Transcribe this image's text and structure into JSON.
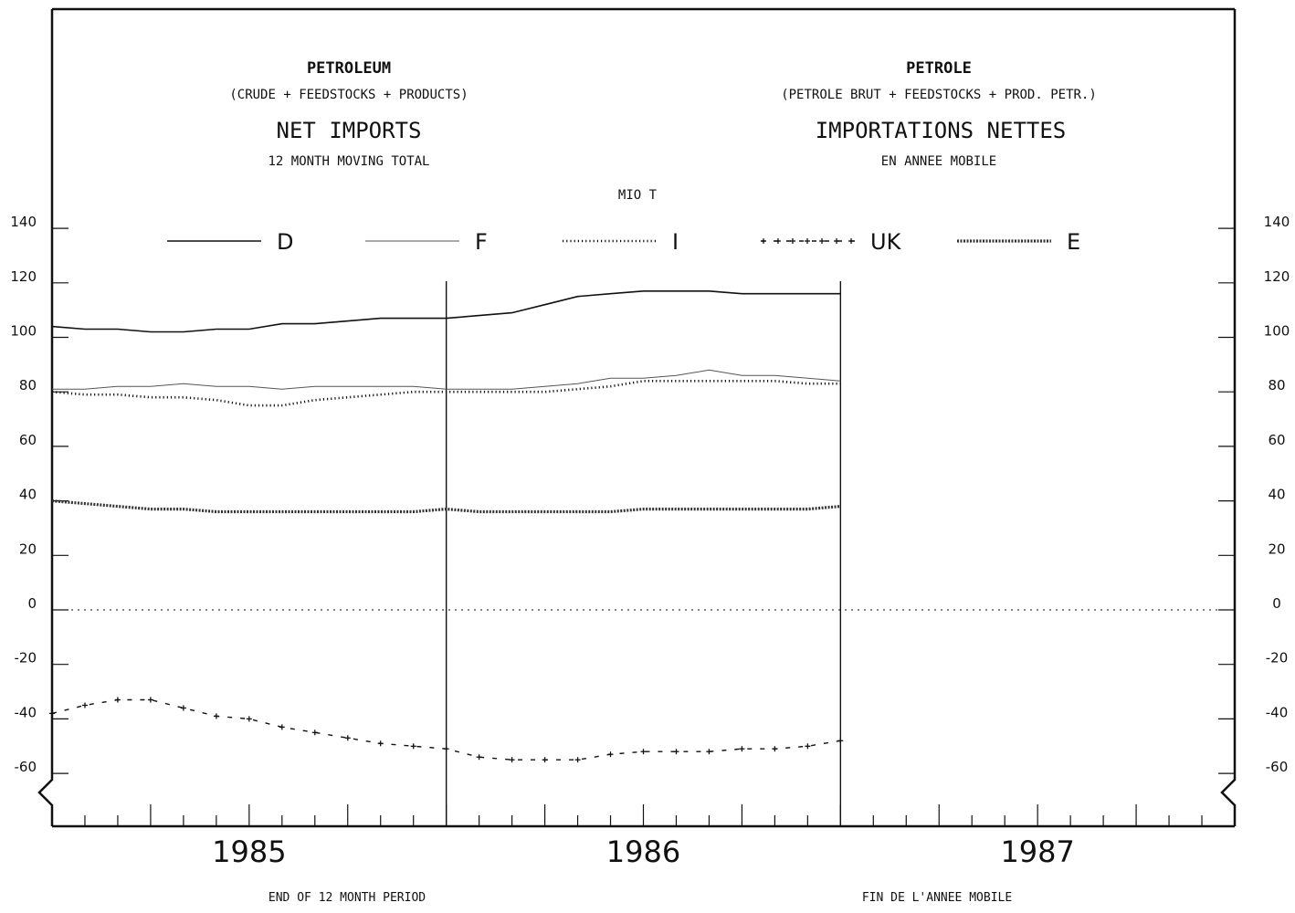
{
  "titles": {
    "en_title": "PETROLEUM",
    "en_sub": "(CRUDE + FEEDSTOCKS + PRODUCTS)",
    "en_main": "NET IMPORTS",
    "en_period": "12 MONTH MOVING TOTAL",
    "fr_title": "PETROLE",
    "fr_sub": "(PETROLE BRUT + FEEDSTOCKS + PROD. PETR.)",
    "fr_main": "IMPORTATIONS NETTES",
    "fr_period": "EN ANNEE MOBILE",
    "unit": "MIO T",
    "footer_en": "END OF 12 MONTH PERIOD",
    "footer_fr": "FIN DE L'ANNEE MOBILE"
  },
  "chart_data": {
    "type": "line",
    "unit": "MIO T",
    "years": [
      "1985",
      "1986",
      "1987"
    ],
    "x_months": [
      0,
      1,
      2,
      3,
      4,
      5,
      6,
      7,
      8,
      9,
      10,
      11,
      12,
      13,
      14,
      15,
      16,
      17,
      18,
      19,
      20,
      21,
      22,
      23,
      24
    ],
    "xlim": [
      0,
      36
    ],
    "ylim": [
      -70,
      150
    ],
    "yticks": [
      140,
      120,
      100,
      80,
      60,
      40,
      20,
      0,
      -20,
      -40,
      -60
    ],
    "ytick_labels": [
      "140",
      "120",
      "100",
      "80",
      "60",
      "40",
      "20",
      "0",
      "-20",
      "-40",
      "-60"
    ],
    "reference_months": [
      12,
      24
    ],
    "zero_line": true,
    "legend_position": "top",
    "series": [
      {
        "name": "D",
        "style": "solid",
        "values": [
          104,
          103,
          103,
          102,
          102,
          103,
          103,
          105,
          105,
          106,
          107,
          107,
          107,
          108,
          109,
          112,
          115,
          116,
          117,
          117,
          117,
          116,
          116,
          116,
          116
        ]
      },
      {
        "name": "F",
        "style": "thin",
        "values": [
          81,
          81,
          82,
          82,
          83,
          82,
          82,
          81,
          82,
          82,
          82,
          82,
          81,
          81,
          81,
          82,
          83,
          85,
          85,
          86,
          88,
          86,
          86,
          85,
          84
        ]
      },
      {
        "name": "I",
        "style": "dotted",
        "values": [
          80,
          79,
          79,
          78,
          78,
          77,
          75,
          75,
          77,
          78,
          79,
          80,
          80,
          80,
          80,
          80,
          81,
          82,
          84,
          84,
          84,
          84,
          84,
          83,
          83
        ]
      },
      {
        "name": "UK",
        "style": "plus",
        "values": [
          -38,
          -35,
          -33,
          -33,
          -36,
          -39,
          -40,
          -43,
          -45,
          -47,
          -49,
          -50,
          -51,
          -54,
          -55,
          -55,
          -55,
          -53,
          -52,
          -52,
          -52,
          -51,
          -51,
          -50,
          -48
        ]
      },
      {
        "name": "E",
        "style": "double",
        "values": [
          40,
          39,
          38,
          37,
          37,
          36,
          36,
          36,
          36,
          36,
          36,
          36,
          37,
          36,
          36,
          36,
          36,
          36,
          37,
          37,
          37,
          37,
          37,
          37,
          38
        ]
      }
    ]
  }
}
